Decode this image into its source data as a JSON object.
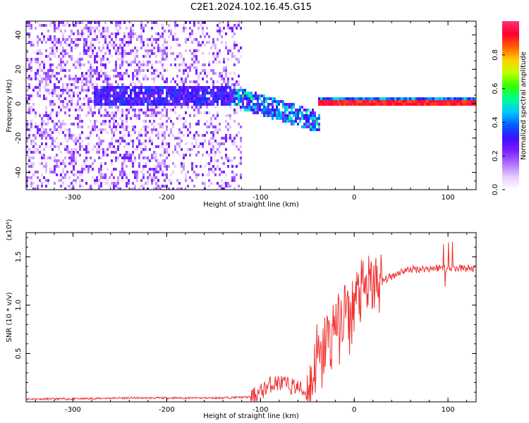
{
  "title": "C2E1.2024.102.16.45.G15",
  "chart_data": [
    {
      "type": "heatmap",
      "xlabel": "Height of straight line (km)",
      "ylabel": "Frequency (Hz)",
      "xlim": [
        -350,
        130
      ],
      "ylim": [
        -50,
        48
      ],
      "x_ticks": [
        -300,
        -200,
        -100,
        0,
        100
      ],
      "y_ticks": [
        -40,
        -20,
        0,
        20,
        40
      ],
      "colorbar": {
        "label": "Normalized spectral amplitude",
        "range": [
          0,
          1
        ],
        "ticks": [
          "0.0",
          "0.2",
          "0.4",
          "0.6",
          "0.8"
        ],
        "tick_values": [
          0.0,
          0.2,
          0.4,
          0.6,
          0.8
        ],
        "colormap": [
          "#ffffff",
          "#e6ccff",
          "#b070ff",
          "#7a1fff",
          "#3a10ff",
          "#0060ff",
          "#00c8ff",
          "#00ff90",
          "#30ff00",
          "#c0ff00",
          "#ffd000",
          "#ff6000",
          "#ff0030",
          "#ff3070"
        ]
      },
      "grid": false,
      "features": [
        {
          "x_range": [
            -350,
            -120
          ],
          "freq_range": [
            -50,
            48
          ],
          "amplitude": "low, scattered"
        },
        {
          "x_range": [
            -280,
            -40
          ],
          "freq_center": 5,
          "amplitude": "0.2-0.5, band drifting downward toward -10 Hz near -40 km"
        },
        {
          "x_range": [
            -40,
            130
          ],
          "freq_center": 2,
          "amplitude": "0.8-1.0, narrow line"
        }
      ]
    },
    {
      "type": "line",
      "xlabel": "Height of straight line (km)",
      "ylabel": "SNR (10 * v/v)",
      "y_multiplier": "(x10⁴)",
      "xlim": [
        -350,
        130
      ],
      "ylim": [
        0,
        1.75
      ],
      "x_ticks": [
        -300,
        -200,
        -100,
        0,
        100
      ],
      "y_ticks": [
        0.5,
        1.0,
        1.5
      ],
      "y_tick_labels": [
        "0.5",
        "1.0",
        "1.5"
      ],
      "line_color": "#f03030",
      "grid": false,
      "series": [
        {
          "x": [
            -350,
            -300,
            -250,
            -200,
            -150,
            -110,
            -100,
            -90,
            -80,
            -70,
            -60,
            -50,
            -45,
            -40,
            -35,
            -30,
            -25,
            -20,
            -15,
            -10,
            -5,
            0,
            10,
            20,
            30,
            40,
            50,
            60,
            80,
            95,
            100,
            105,
            110,
            130
          ],
          "y": [
            0.03,
            0.03,
            0.04,
            0.04,
            0.04,
            0.05,
            0.1,
            0.18,
            0.2,
            0.17,
            0.15,
            0.08,
            0.2,
            0.5,
            0.35,
            0.7,
            0.6,
            0.9,
            0.7,
            1.0,
            0.8,
            1.05,
            1.15,
            1.2,
            1.25,
            1.3,
            1.35,
            1.37,
            1.38,
            1.39,
            1.37,
            1.38,
            1.38,
            1.38
          ]
        }
      ]
    }
  ]
}
